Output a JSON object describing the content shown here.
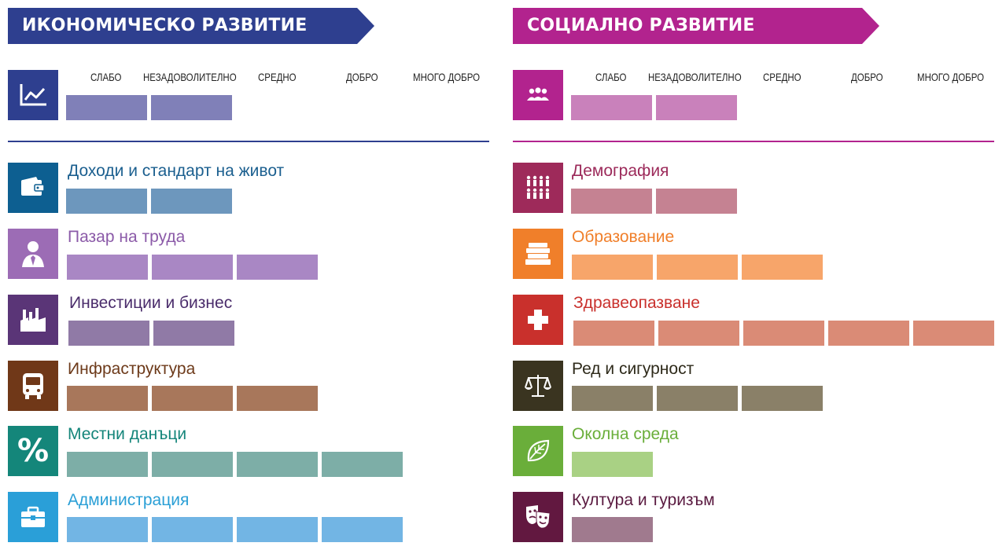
{
  "scale_labels": [
    "СЛАБО",
    "НЕЗАДОВОЛИТЕЛНО",
    "СРЕДНО",
    "ДОБРО",
    "МНОГО ДОБРО"
  ],
  "economic": {
    "title": "ИКОНОМИЧЕСКО РАЗВИТИЕ",
    "color": "#2e3f8f",
    "overall": {
      "icon": "line-chart-icon",
      "rating": 2,
      "bar_color": "#8080b8",
      "icon_bg": "#2e3f8f"
    },
    "categories": [
      {
        "label": "Доходи и стандарт на живот",
        "icon": "wallet-icon",
        "rating": 2,
        "label_color": "#1b5f8f",
        "icon_bg": "#0d5f91",
        "bar_color": "#6d97bd"
      },
      {
        "label": "Пазар на труда",
        "icon": "worker-icon",
        "rating": 3,
        "label_color": "#8b5aa8",
        "icon_bg": "#9c6cb5",
        "bar_color": "#a987c4"
      },
      {
        "label": "Инвестиции и бизнес",
        "icon": "factory-icon",
        "rating": 2,
        "label_color": "#4a2c6b",
        "icon_bg": "#5a3577",
        "bar_color": "#907aa6"
      },
      {
        "label": "Инфраструктура",
        "icon": "bus-icon",
        "rating": 3,
        "label_color": "#6d3a1a",
        "icon_bg": "#703818",
        "bar_color": "#a8775b"
      },
      {
        "label": "Местни данъци",
        "icon": "percent-icon",
        "rating": 4,
        "label_color": "#14857a",
        "icon_bg": "#14867a",
        "bar_color": "#7daea7"
      },
      {
        "label": "Администрация",
        "icon": "briefcase-icon",
        "rating": 4,
        "label_color": "#2a9fd6",
        "icon_bg": "#2a9fd8",
        "bar_color": "#72b5e4"
      }
    ]
  },
  "social": {
    "title": "СОЦИАЛНО РАЗВИТИЕ",
    "color": "#b2238e",
    "overall": {
      "icon": "people-group-icon",
      "rating": 2,
      "bar_color": "#c981bb",
      "icon_bg": "#b2238e"
    },
    "categories": [
      {
        "label": "Демография",
        "icon": "population-icon",
        "rating": 2,
        "label_color": "#9c2a5a",
        "icon_bg": "#9e2a5a",
        "bar_color": "#c58292"
      },
      {
        "label": "Образование",
        "icon": "books-icon",
        "rating": 3,
        "label_color": "#f07f2a",
        "icon_bg": "#f07f2a",
        "bar_color": "#f7a56a"
      },
      {
        "label": "Здравеопазване",
        "icon": "medical-cross-icon",
        "rating": 5,
        "label_color": "#c9302c",
        "icon_bg": "#c9302c",
        "bar_color": "#da8b76"
      },
      {
        "label": "Ред и сигурност",
        "icon": "scales-icon",
        "rating": 3,
        "label_color": "#2e2a1a",
        "icon_bg": "#3a3420",
        "bar_color": "#8a8068"
      },
      {
        "label": "Околна среда",
        "icon": "leaf-icon",
        "rating": 1,
        "label_color": "#6aae3a",
        "icon_bg": "#6aae3a",
        "bar_color": "#a9d184"
      },
      {
        "label": "Култура и туризъм",
        "icon": "theater-masks-icon",
        "rating": 1,
        "label_color": "#5a1a40",
        "icon_bg": "#621840",
        "bar_color": "#a07a8e"
      }
    ]
  }
}
